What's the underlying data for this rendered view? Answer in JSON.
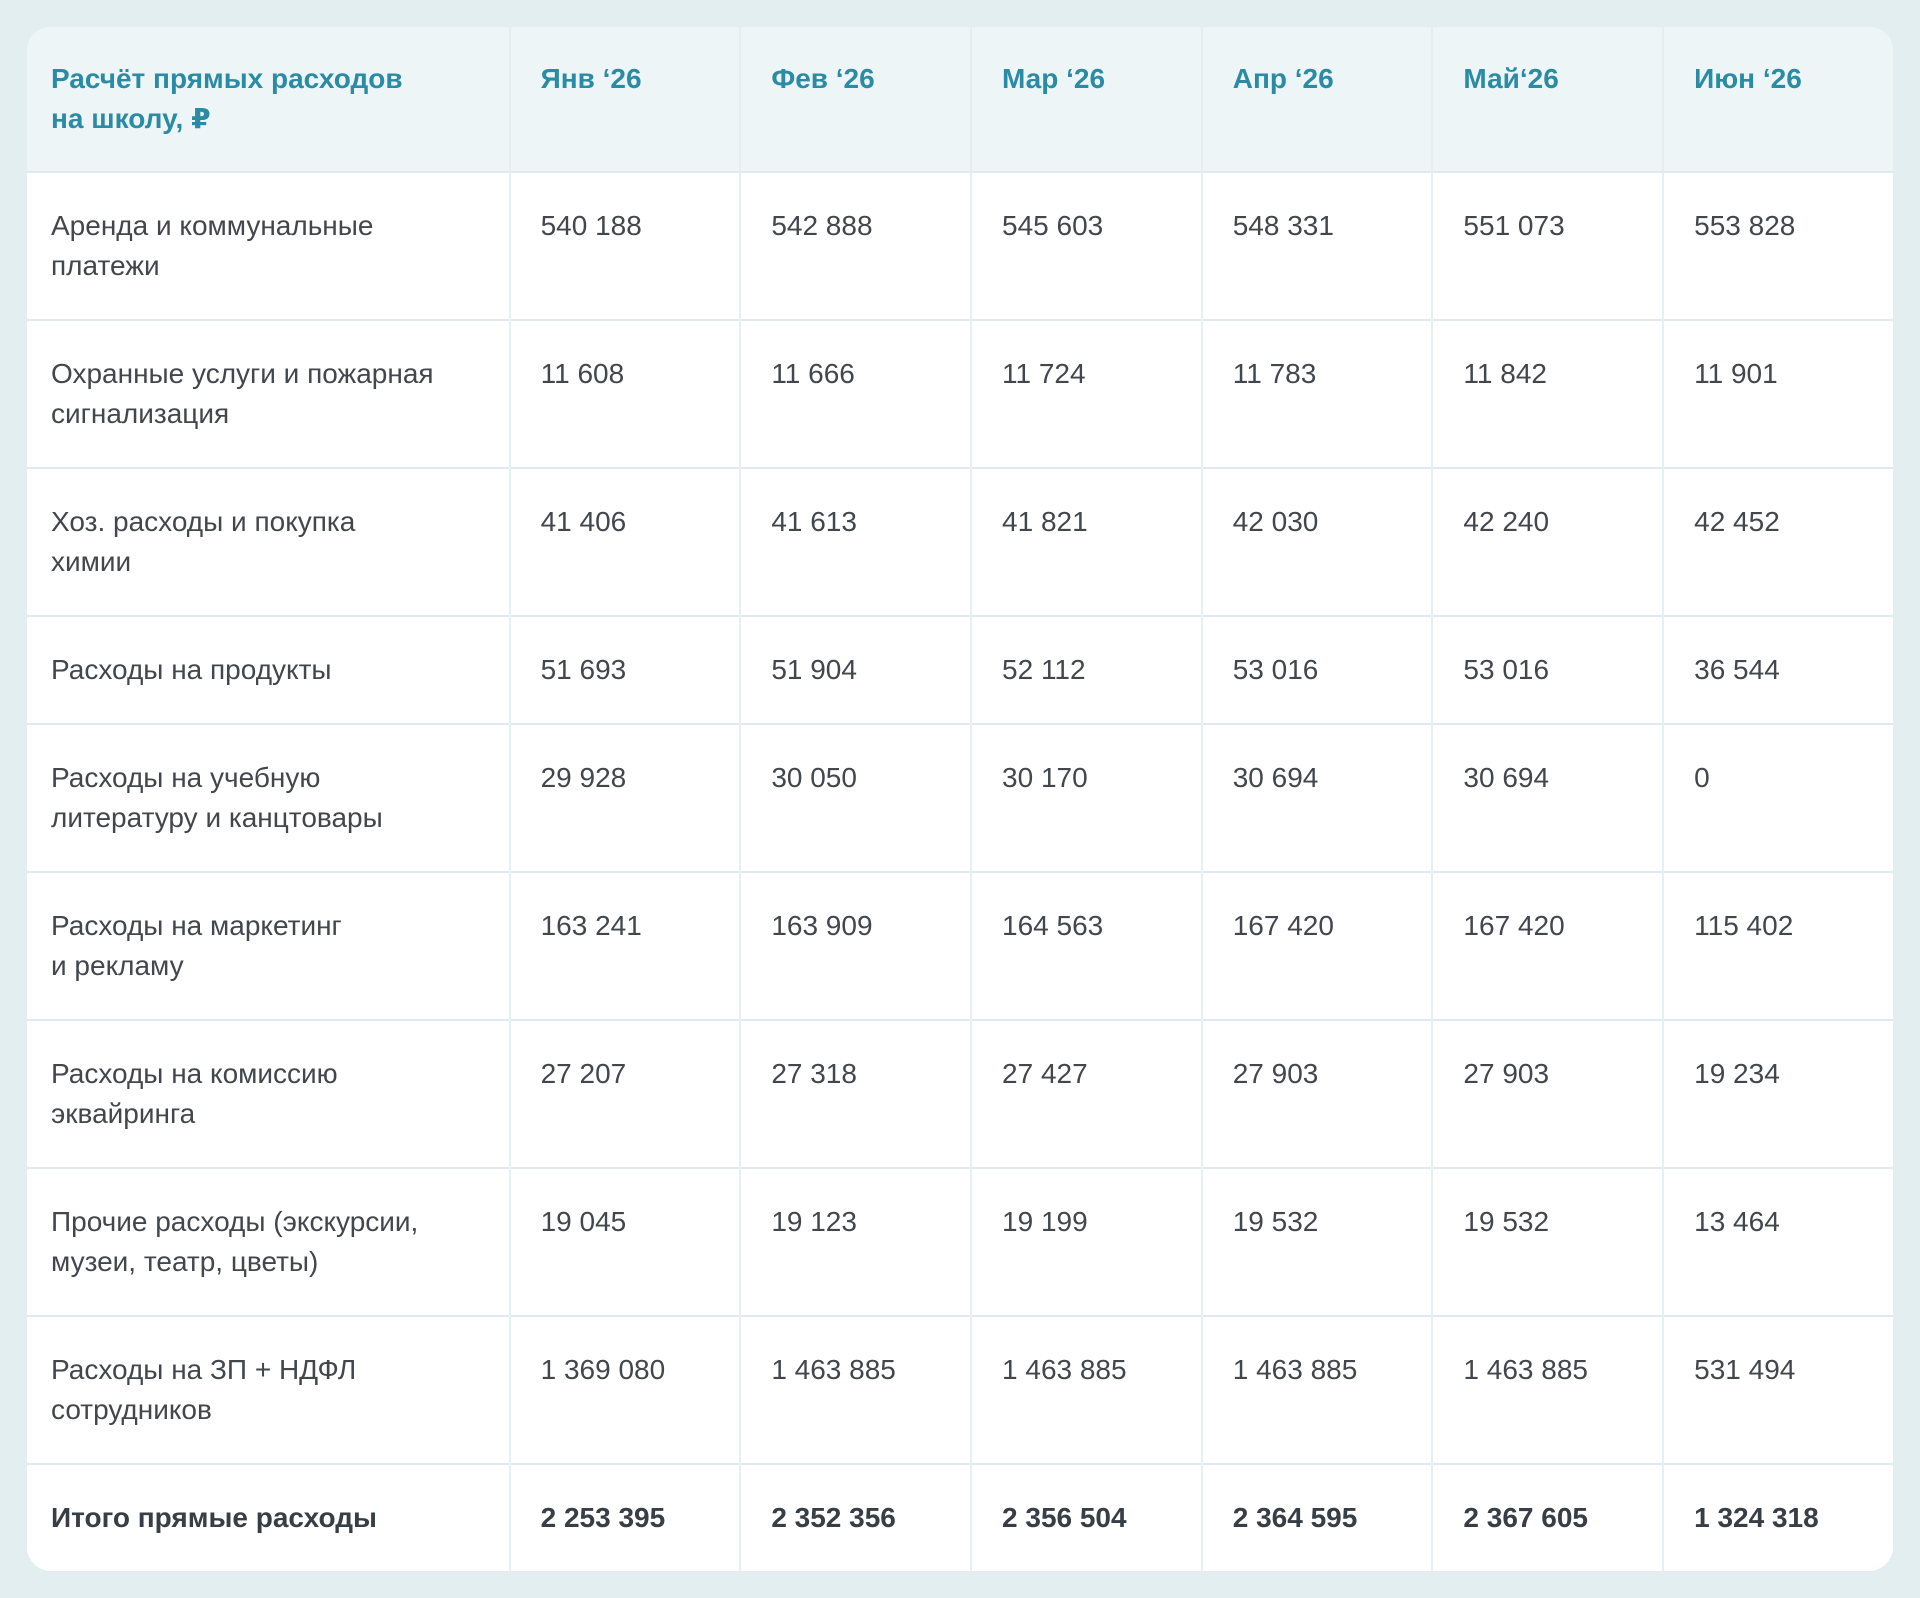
{
  "page": {
    "background_color": "#e3eef0",
    "card_background_color": "#ffffff"
  },
  "colors": {
    "accent_teal": "#2b8ba4",
    "header_background": "#edf5f7",
    "body_text": "#42474d",
    "total_text": "#383e45",
    "row_divider": "#dfebee",
    "column_divider": "#e6f0f2"
  },
  "table": {
    "title": "Расчёт прямых расходов\nна школу, ₽",
    "months": [
      "Янв ‘26",
      "Фев ‘26",
      "Мар ‘26",
      "Апр ‘26",
      "Май‘26",
      "Июн ‘26"
    ],
    "rows": [
      {
        "label": "Аренда и коммунальные\nплатежи",
        "values": [
          "540 188",
          "542 888",
          "545 603",
          "548 331",
          "551 073",
          "553 828"
        ],
        "total": false
      },
      {
        "label": "Охранные услуги и пожарная\nсигнализация",
        "values": [
          "11 608",
          "11 666",
          "11 724",
          "11 783",
          "11 842",
          "11 901"
        ],
        "total": false
      },
      {
        "label": "Хоз. расходы и покупка\nхимии",
        "values": [
          "41 406",
          "41 613",
          "41 821",
          "42 030",
          "42 240",
          "42 452"
        ],
        "total": false
      },
      {
        "label": "Расходы на продукты",
        "values": [
          "51 693",
          "51 904",
          "52 112",
          "53 016",
          "53 016",
          "36 544"
        ],
        "total": false
      },
      {
        "label": "Расходы на учебную\nлитературу и канцтовары",
        "values": [
          "29 928",
          "30 050",
          "30 170",
          "30 694",
          "30 694",
          "0"
        ],
        "total": false
      },
      {
        "label": "Расходы на маркетинг\nи рекламу",
        "values": [
          "163 241",
          "163 909",
          "164 563",
          "167 420",
          "167 420",
          "115 402"
        ],
        "total": false
      },
      {
        "label": "Расходы на комиссию\nэквайринга",
        "values": [
          "27 207",
          "27 318",
          "27 427",
          "27 903",
          "27 903",
          "19 234"
        ],
        "total": false
      },
      {
        "label": "Прочие расходы (экскурсии,\nмузеи, театр, цветы)",
        "values": [
          "19 045",
          "19 123",
          "19 199",
          "19 532",
          "19 532",
          "13 464"
        ],
        "total": false
      },
      {
        "label": "Расходы на ЗП + НДФЛ\nсотрудников",
        "values": [
          "1 369 080",
          "1 463 885",
          "1 463 885",
          "1 463 885",
          "1 463 885",
          "531 494"
        ],
        "total": false
      },
      {
        "label": "Итого прямые расходы",
        "values": [
          "2 253 395",
          "2 352 356",
          "2 356 504",
          "2 364 595",
          "2 367 605",
          "1 324 318"
        ],
        "total": true
      }
    ]
  },
  "chart_data": {
    "type": "table",
    "title": "Расчёт прямых расходов на школу, ₽",
    "categories": [
      "Янв ‘26",
      "Фев ‘26",
      "Мар ‘26",
      "Апр ‘26",
      "Май‘26",
      "Июн ‘26"
    ],
    "series": [
      {
        "name": "Аренда и коммунальные платежи",
        "values": [
          540188,
          542888,
          545603,
          548331,
          551073,
          553828
        ]
      },
      {
        "name": "Охранные услуги и пожарная сигнализация",
        "values": [
          11608,
          11666,
          11724,
          11783,
          11842,
          11901
        ]
      },
      {
        "name": "Хоз. расходы и покупка химии",
        "values": [
          41406,
          41613,
          41821,
          42030,
          42240,
          42452
        ]
      },
      {
        "name": "Расходы на продукты",
        "values": [
          51693,
          51904,
          52112,
          53016,
          53016,
          36544
        ]
      },
      {
        "name": "Расходы на учебную литературу и канцтовары",
        "values": [
          29928,
          30050,
          30170,
          30694,
          30694,
          0
        ]
      },
      {
        "name": "Расходы на маркетинг и рекламу",
        "values": [
          163241,
          163909,
          164563,
          167420,
          167420,
          115402
        ]
      },
      {
        "name": "Расходы на комиссию эквайринга",
        "values": [
          27207,
          27318,
          27427,
          27903,
          27903,
          19234
        ]
      },
      {
        "name": "Прочие расходы (экскурсии, музеи, театр, цветы)",
        "values": [
          19045,
          19123,
          19199,
          19532,
          19532,
          13464
        ]
      },
      {
        "name": "Расходы на ЗП + НДФЛ сотрудников",
        "values": [
          1369080,
          1463885,
          1463885,
          1463885,
          1463885,
          531494
        ]
      },
      {
        "name": "Итого прямые расходы",
        "values": [
          2253395,
          2352356,
          2356504,
          2364595,
          2367605,
          1324318
        ]
      }
    ]
  }
}
